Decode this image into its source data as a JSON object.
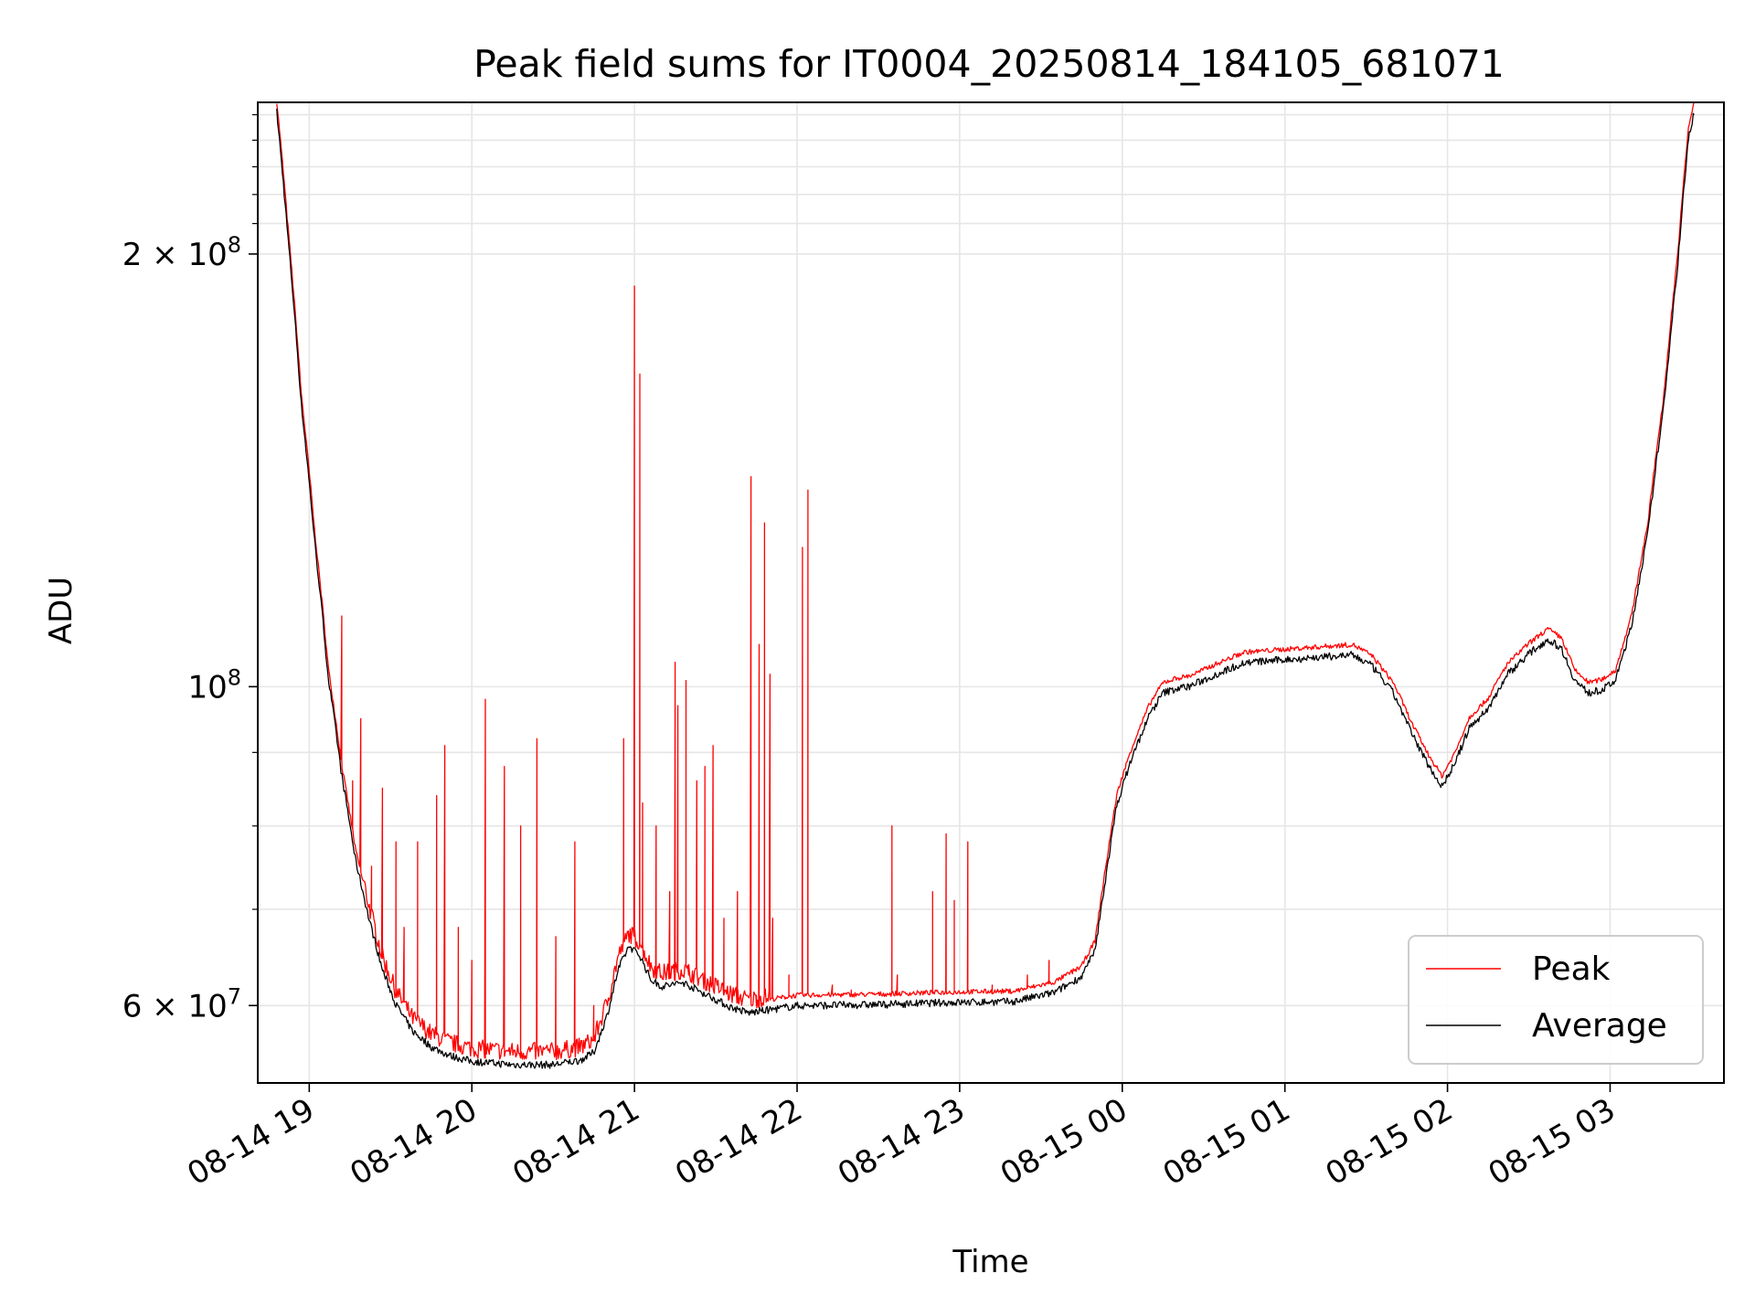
{
  "chart_data": {
    "type": "line",
    "title": "Peak field sums for IT0004_20250814_184105_681071",
    "xlabel": "Time",
    "ylabel": "ADU",
    "y_scale": "log",
    "ylim": [
      53000000,
      255000000
    ],
    "xlim": [
      "2025-08-14 18:41",
      "2025-08-15 03:42"
    ],
    "grid": true,
    "legend_position": "lower-right",
    "x_ticks": [
      "08-14 19",
      "08-14 20",
      "08-14 21",
      "08-14 22",
      "08-14 23",
      "08-15 00",
      "08-15 01",
      "08-15 02",
      "08-15 03"
    ],
    "y_ticks": [
      {
        "value": 60000000,
        "label": "6 × 10",
        "exp": "7"
      },
      {
        "value": 100000000,
        "label": "10",
        "exp": "8"
      },
      {
        "value": 200000000,
        "label": "2 × 10",
        "exp": "8"
      }
    ],
    "series": [
      {
        "name": "Peak",
        "color": "#ff0000",
        "baseline": [
          [
            "2025-08-14 18:48",
            255000000
          ],
          [
            "2025-08-14 18:52",
            210000000
          ],
          [
            "2025-08-14 18:57",
            160000000
          ],
          [
            "2025-08-14 19:02",
            128000000
          ],
          [
            "2025-08-14 19:07",
            103000000
          ],
          [
            "2025-08-14 19:12",
            88000000
          ],
          [
            "2025-08-14 19:17",
            77000000
          ],
          [
            "2025-08-14 19:22",
            70000000
          ],
          [
            "2025-08-14 19:27",
            64500000
          ],
          [
            "2025-08-14 19:32",
            61000000
          ],
          [
            "2025-08-14 19:38",
            58500000
          ],
          [
            "2025-08-14 19:45",
            57000000
          ],
          [
            "2025-08-14 19:52",
            56200000
          ],
          [
            "2025-08-14 20:00",
            55700000
          ],
          [
            "2025-08-14 20:15",
            55400000
          ],
          [
            "2025-08-14 20:30",
            55400000
          ],
          [
            "2025-08-14 20:40",
            55800000
          ],
          [
            "2025-08-14 20:45",
            56500000
          ],
          [
            "2025-08-14 20:50",
            60000000
          ],
          [
            "2025-08-14 20:54",
            64500000
          ],
          [
            "2025-08-14 20:58",
            67000000
          ],
          [
            "2025-08-14 21:02",
            66000000
          ],
          [
            "2025-08-14 21:06",
            63500000
          ],
          [
            "2025-08-14 21:10",
            62800000
          ],
          [
            "2025-08-14 21:18",
            63200000
          ],
          [
            "2025-08-14 21:25",
            62200000
          ],
          [
            "2025-08-14 21:35",
            60800000
          ],
          [
            "2025-08-14 21:42",
            60200000
          ],
          [
            "2025-08-14 21:50",
            60500000
          ],
          [
            "2025-08-14 22:00",
            60900000
          ],
          [
            "2025-08-14 22:30",
            61000000
          ],
          [
            "2025-08-14 22:55",
            61200000
          ],
          [
            "2025-08-14 23:20",
            61300000
          ],
          [
            "2025-08-14 23:35",
            62200000
          ],
          [
            "2025-08-14 23:45",
            63800000
          ],
          [
            "2025-08-14 23:50",
            66500000
          ],
          [
            "2025-08-14 23:54",
            75000000
          ],
          [
            "2025-08-14 23:58",
            84000000
          ],
          [
            "2025-08-15 00:03",
            90000000
          ],
          [
            "2025-08-15 00:10",
            97000000
          ],
          [
            "2025-08-15 00:15",
            100500000
          ],
          [
            "2025-08-15 00:20",
            101200000
          ],
          [
            "2025-08-15 00:25",
            101600000
          ],
          [
            "2025-08-15 00:35",
            103600000
          ],
          [
            "2025-08-15 00:45",
            105500000
          ],
          [
            "2025-08-15 01:00",
            106000000
          ],
          [
            "2025-08-15 01:15",
            106500000
          ],
          [
            "2025-08-15 01:25",
            106800000
          ],
          [
            "2025-08-15 01:32",
            105000000
          ],
          [
            "2025-08-15 01:40",
            100500000
          ],
          [
            "2025-08-15 01:47",
            94000000
          ],
          [
            "2025-08-15 01:53",
            89500000
          ],
          [
            "2025-08-15 01:58",
            86500000
          ],
          [
            "2025-08-15 02:03",
            90000000
          ],
          [
            "2025-08-15 02:08",
            95000000
          ],
          [
            "2025-08-15 02:15",
            98000000
          ],
          [
            "2025-08-15 02:22",
            103500000
          ],
          [
            "2025-08-15 02:30",
            107000000
          ],
          [
            "2025-08-15 02:37",
            109500000
          ],
          [
            "2025-08-15 02:42",
            108000000
          ],
          [
            "2025-08-15 02:47",
            102500000
          ],
          [
            "2025-08-15 02:52",
            100500000
          ],
          [
            "2025-08-15 02:57",
            101000000
          ],
          [
            "2025-08-15 03:02",
            102500000
          ],
          [
            "2025-08-15 03:08",
            112000000
          ],
          [
            "2025-08-15 03:14",
            130000000
          ],
          [
            "2025-08-15 03:20",
            160000000
          ],
          [
            "2025-08-15 03:25",
            200000000
          ],
          [
            "2025-08-15 03:29",
            245000000
          ],
          [
            "2025-08-15 03:31",
            255000000
          ]
        ],
        "spikes": [
          [
            "2025-08-14 19:12",
            112000000
          ],
          [
            "2025-08-14 19:16",
            86000000
          ],
          [
            "2025-08-14 19:19",
            95000000
          ],
          [
            "2025-08-14 19:23",
            75000000
          ],
          [
            "2025-08-14 19:27",
            85000000
          ],
          [
            "2025-08-14 19:32",
            78000000
          ],
          [
            "2025-08-14 19:35",
            68000000
          ],
          [
            "2025-08-14 19:40",
            78000000
          ],
          [
            "2025-08-14 19:47",
            84000000
          ],
          [
            "2025-08-14 19:50",
            91000000
          ],
          [
            "2025-08-14 19:55",
            68000000
          ],
          [
            "2025-08-14 20:00",
            64500000
          ],
          [
            "2025-08-14 20:05",
            98000000
          ],
          [
            "2025-08-14 20:12",
            88000000
          ],
          [
            "2025-08-14 20:18",
            80000000
          ],
          [
            "2025-08-14 20:24",
            92000000
          ],
          [
            "2025-08-14 20:31",
            67000000
          ],
          [
            "2025-08-14 20:38",
            78000000
          ],
          [
            "2025-08-14 20:45",
            60000000
          ],
          [
            "2025-08-14 20:56",
            92000000
          ],
          [
            "2025-08-14 21:03",
            83000000
          ],
          [
            "2025-08-14 21:08",
            80000000
          ],
          [
            "2025-08-14 21:13",
            72000000
          ],
          [
            "2025-08-14 21:16",
            97000000
          ],
          [
            "2025-08-14 21:20",
            63000000
          ],
          [
            "2025-08-14 21:23",
            86000000
          ],
          [
            "2025-08-14 21:26",
            88000000
          ],
          [
            "2025-08-14 21:29",
            91000000
          ],
          [
            "2025-08-14 21:33",
            69000000
          ],
          [
            "2025-08-14 21:38",
            72000000
          ],
          [
            "2025-08-14 21:45",
            60000000
          ],
          [
            "2025-08-14 21:51",
            69000000
          ],
          [
            "2025-08-14 21:57",
            63000000
          ],
          [
            "2025-08-14 22:13",
            62000000
          ],
          [
            "2025-08-14 22:20",
            61500000
          ],
          [
            "2025-08-14 22:37",
            63000000
          ],
          [
            "2025-08-14 22:50",
            61500000
          ],
          [
            "2025-08-14 23:12",
            62000000
          ],
          [
            "2025-08-14 23:25",
            63000000
          ],
          [
            "2025-08-14 23:33",
            64500000
          ]
        ],
        "major_peaks": [
          [
            "2025-08-14 21:00",
            190000000
          ],
          [
            "2025-08-14 21:02",
            165000000
          ],
          [
            "2025-08-14 21:43",
            140000000
          ],
          [
            "2025-08-14 21:48",
            130000000
          ],
          [
            "2025-08-14 22:02",
            125000000
          ],
          [
            "2025-08-14 22:04",
            137000000
          ],
          [
            "2025-08-14 21:46",
            107000000
          ],
          [
            "2025-08-14 21:50",
            102000000
          ],
          [
            "2025-08-14 21:15",
            104000000
          ],
          [
            "2025-08-14 21:19",
            101000000
          ],
          [
            "2025-08-14 22:35",
            80000000
          ],
          [
            "2025-08-14 22:55",
            79000000
          ],
          [
            "2025-08-14 23:03",
            78000000
          ],
          [
            "2025-08-14 22:50",
            72000000
          ],
          [
            "2025-08-14 22:58",
            71000000
          ]
        ]
      },
      {
        "name": "Average",
        "color": "#000000",
        "offset_factor": 0.985
      }
    ]
  }
}
